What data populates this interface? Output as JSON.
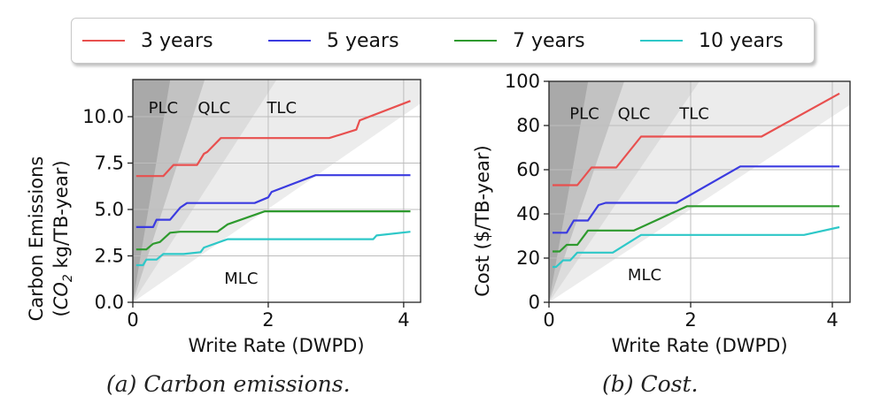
{
  "legend": {
    "items": [
      {
        "label": "3 years",
        "color": "#e8504f"
      },
      {
        "label": "5 years",
        "color": "#3b3be0"
      },
      {
        "label": "7 years",
        "color": "#2e9a2e"
      },
      {
        "label": "10 years",
        "color": "#2ec8c8"
      }
    ]
  },
  "chart_data": [
    {
      "type": "line",
      "caption": "(a) Carbon emissions.",
      "xlabel": "Write Rate (DWPD)",
      "ylabel_line1": "Carbon Emissions",
      "ylabel_line2_prefix": "(",
      "ylabel_co": "CO",
      "ylabel_sub": "2",
      "ylabel_line2_suffix": " kg/TB-year)",
      "xlim": [
        0,
        4.25
      ],
      "ylim": [
        0,
        12
      ],
      "xticks": [
        0,
        2,
        4
      ],
      "yticks": [
        0,
        2.5,
        5,
        7.5,
        10
      ],
      "ytick_labels": [
        "0.0",
        "2.5",
        "5.0",
        "7.5",
        "10.0"
      ],
      "grid": true,
      "regions": [
        {
          "label": "PLC",
          "x": 0.45,
          "y": 10.2
        },
        {
          "label": "QLC",
          "x": 1.2,
          "y": 10.2
        },
        {
          "label": "TLC",
          "x": 2.2,
          "y": 10.2
        },
        {
          "label": "MLC",
          "x": 1.6,
          "y": 1.0
        }
      ],
      "series": [
        {
          "name": "3 years",
          "color": "#e8504f",
          "points": [
            [
              0.05,
              6.8
            ],
            [
              0.15,
              6.8
            ],
            [
              0.45,
              6.8
            ],
            [
              0.6,
              7.4
            ],
            [
              0.95,
              7.4
            ],
            [
              1.05,
              8.0
            ],
            [
              1.1,
              8.1
            ],
            [
              1.3,
              8.85
            ],
            [
              2.9,
              8.85
            ],
            [
              3.3,
              9.3
            ],
            [
              3.35,
              9.8
            ],
            [
              4.1,
              10.85
            ]
          ]
        },
        {
          "name": "5 years",
          "color": "#3b3be0",
          "points": [
            [
              0.05,
              4.05
            ],
            [
              0.3,
              4.05
            ],
            [
              0.35,
              4.45
            ],
            [
              0.55,
              4.45
            ],
            [
              0.7,
              5.1
            ],
            [
              0.8,
              5.35
            ],
            [
              1.8,
              5.35
            ],
            [
              2.0,
              5.65
            ],
            [
              2.05,
              5.95
            ],
            [
              2.7,
              6.85
            ],
            [
              4.1,
              6.85
            ]
          ]
        },
        {
          "name": "7 years",
          "color": "#2e9a2e",
          "points": [
            [
              0.05,
              2.85
            ],
            [
              0.2,
              2.85
            ],
            [
              0.3,
              3.15
            ],
            [
              0.4,
              3.25
            ],
            [
              0.55,
              3.75
            ],
            [
              0.7,
              3.8
            ],
            [
              1.25,
              3.8
            ],
            [
              1.4,
              4.2
            ],
            [
              1.95,
              4.9
            ],
            [
              4.1,
              4.9
            ]
          ]
        },
        {
          "name": "10 years",
          "color": "#2ec8c8",
          "points": [
            [
              0.05,
              2.0
            ],
            [
              0.15,
              2.0
            ],
            [
              0.2,
              2.3
            ],
            [
              0.35,
              2.3
            ],
            [
              0.45,
              2.6
            ],
            [
              0.75,
              2.6
            ],
            [
              1.0,
              2.7
            ],
            [
              1.05,
              2.95
            ],
            [
              1.4,
              3.4
            ],
            [
              3.55,
              3.4
            ],
            [
              3.6,
              3.6
            ],
            [
              4.1,
              3.8
            ]
          ]
        }
      ]
    },
    {
      "type": "line",
      "caption": "(b) Cost.",
      "xlabel": "Write Rate (DWPD)",
      "ylabel": "Cost ($/TB-year)",
      "xlim": [
        0,
        4.25
      ],
      "ylim": [
        0,
        100
      ],
      "xticks": [
        0,
        2,
        4
      ],
      "yticks": [
        0,
        20,
        40,
        60,
        80,
        100
      ],
      "ytick_labels": [
        "0",
        "20",
        "40",
        "60",
        "80",
        "100"
      ],
      "grid": true,
      "regions": [
        {
          "label": "PLC",
          "x": 0.5,
          "y": 83
        },
        {
          "label": "QLC",
          "x": 1.2,
          "y": 83
        },
        {
          "label": "TLC",
          "x": 2.05,
          "y": 83
        },
        {
          "label": "MLC",
          "x": 1.35,
          "y": 10
        }
      ],
      "series": [
        {
          "name": "3 years",
          "color": "#e8504f",
          "points": [
            [
              0.05,
              53
            ],
            [
              0.4,
              53
            ],
            [
              0.6,
              61
            ],
            [
              0.95,
              61
            ],
            [
              1.3,
              75
            ],
            [
              3.0,
              75
            ],
            [
              4.1,
              94.5
            ]
          ]
        },
        {
          "name": "5 years",
          "color": "#3b3be0",
          "points": [
            [
              0.05,
              31.5
            ],
            [
              0.25,
              31.5
            ],
            [
              0.35,
              37
            ],
            [
              0.55,
              37
            ],
            [
              0.7,
              44
            ],
            [
              0.8,
              45
            ],
            [
              1.8,
              45
            ],
            [
              2.7,
              61.5
            ],
            [
              4.1,
              61.5
            ]
          ]
        },
        {
          "name": "7 years",
          "color": "#2e9a2e",
          "points": [
            [
              0.05,
              23
            ],
            [
              0.15,
              23
            ],
            [
              0.25,
              26
            ],
            [
              0.4,
              26
            ],
            [
              0.55,
              32.5
            ],
            [
              1.2,
              32.5
            ],
            [
              1.95,
              43.5
            ],
            [
              4.1,
              43.5
            ]
          ]
        },
        {
          "name": "10 years",
          "color": "#2ec8c8",
          "points": [
            [
              0.05,
              16
            ],
            [
              0.1,
              16
            ],
            [
              0.2,
              19
            ],
            [
              0.3,
              19
            ],
            [
              0.4,
              22.5
            ],
            [
              0.9,
              22.5
            ],
            [
              1.3,
              30.5
            ],
            [
              3.6,
              30.5
            ],
            [
              4.1,
              34
            ]
          ]
        }
      ]
    }
  ]
}
